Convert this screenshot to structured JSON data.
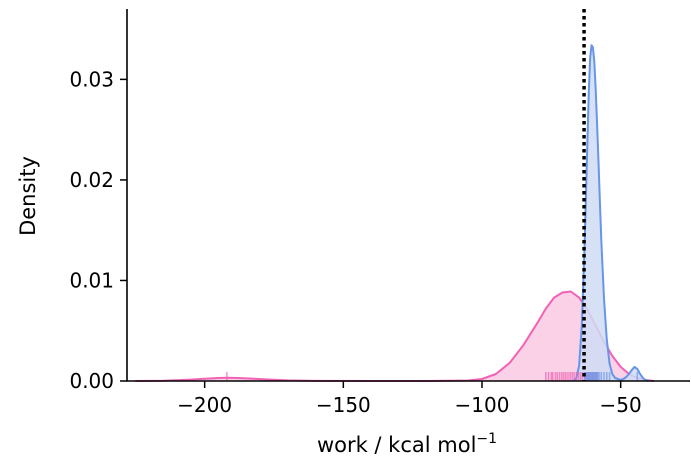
{
  "chart_data": {
    "type": "area",
    "xlabel": "work / kcal mol",
    "xlabel_superscript": "−1",
    "ylabel": "Density",
    "xlim": [
      -228,
      -25
    ],
    "ylim": [
      0,
      0.037
    ],
    "x_ticks": [
      -200,
      -150,
      -100,
      -50
    ],
    "x_tick_labels": [
      "−200",
      "−150",
      "−100",
      "−50"
    ],
    "y_ticks": [
      0.0,
      0.01,
      0.02,
      0.03
    ],
    "y_tick_labels": [
      "0.00",
      "0.01",
      "0.02",
      "0.03"
    ],
    "grid": false,
    "vline": {
      "x": -63.2,
      "style": "dotted",
      "color": "#000000"
    },
    "series": [
      {
        "color": "#f062b4",
        "fill": "#f9c9e3",
        "x": [
          -225,
          -215,
          -205,
          -200,
          -195,
          -192,
          -188,
          -183,
          -178,
          -170,
          -160,
          -140,
          -120,
          -105,
          -100,
          -95,
          -90,
          -85,
          -80,
          -77,
          -74,
          -71,
          -68,
          -65,
          -62,
          -59,
          -56,
          -53,
          -50,
          -47,
          -44,
          -41,
          -38
        ],
        "y": [
          0,
          3e-05,
          0.00014,
          0.00022,
          0.0003,
          0.00032,
          0.0003,
          0.00024,
          0.00016,
          6e-05,
          1e-05,
          0,
          0,
          5e-05,
          0.0002,
          0.0007,
          0.0018,
          0.0036,
          0.0058,
          0.0072,
          0.0083,
          0.0088,
          0.0089,
          0.0083,
          0.0071,
          0.0055,
          0.0039,
          0.0025,
          0.0014,
          0.0007,
          0.0003,
          0.0001,
          0
        ],
        "rug": [
          -192,
          -77,
          -76,
          -75,
          -74.5,
          -73.5,
          -72.8,
          -72,
          -71.2,
          -70.5,
          -69.8,
          -69,
          -68.2,
          -67.5,
          -66.8,
          -66,
          -65.2,
          -64.5,
          -63.8,
          -63,
          -62.2,
          -61.5,
          -60.8,
          -60,
          -59.2,
          -58.5
        ]
      },
      {
        "color": "#6796e8",
        "fill": "#cfdcf5",
        "x": [
          -67,
          -66,
          -65,
          -64,
          -63,
          -62,
          -61.5,
          -61,
          -60.5,
          -60,
          -59.5,
          -59,
          -58.5,
          -58,
          -57.5,
          -57,
          -56,
          -55,
          -54,
          -53,
          -52,
          -51,
          -50,
          -49,
          -48,
          -47,
          -46,
          -45,
          -44,
          -43,
          -42,
          -41,
          -40
        ],
        "y": [
          0,
          0.0003,
          0.0015,
          0.0055,
          0.0135,
          0.0238,
          0.0288,
          0.0322,
          0.0334,
          0.0332,
          0.0318,
          0.029,
          0.0255,
          0.0218,
          0.0178,
          0.014,
          0.0082,
          0.0041,
          0.0017,
          0.0007,
          0.0003,
          0.0002,
          0.0001,
          0.0002,
          0.0004,
          0.0007,
          0.0011,
          0.0014,
          0.0012,
          0.0007,
          0.0003,
          0.0001,
          0
        ],
        "rug": [
          -63,
          -62.5,
          -62,
          -61.6,
          -61.2,
          -60.8,
          -60.4,
          -60,
          -59.6,
          -59.2,
          -58.8,
          -58.3,
          -57.8,
          -57,
          -56,
          -55,
          -54,
          -44
        ]
      }
    ]
  }
}
